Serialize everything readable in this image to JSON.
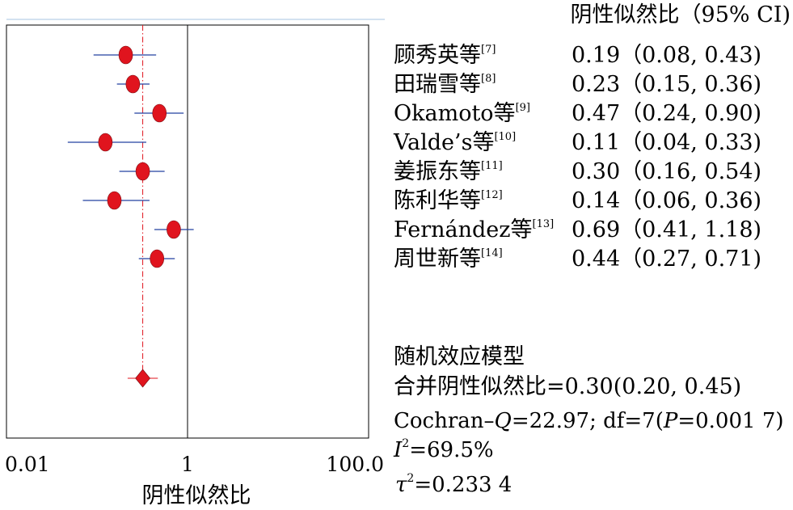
{
  "chart_data": {
    "type": "forest",
    "xlabel": "阴性似然比",
    "xscale": "log",
    "xlim": [
      0.01,
      100.0
    ],
    "xticks": [
      "0.01",
      "1",
      "100.0"
    ],
    "table_header": "阴性似然比（95% CI)",
    "studies": [
      {
        "label_main": "顾秀英等",
        "ref": "[7]",
        "value": 0.19,
        "lower": 0.08,
        "upper": 0.43,
        "ci_text": "0.19（0.08, 0.43)"
      },
      {
        "label_main": "田瑞雪等",
        "ref": "[8]",
        "value": 0.23,
        "lower": 0.15,
        "upper": 0.36,
        "ci_text": "0.23（0.15, 0.36)"
      },
      {
        "label_main": "Okamoto等",
        "ref": "[9]",
        "value": 0.47,
        "lower": 0.24,
        "upper": 0.9,
        "ci_text": "0.47（0.24, 0.90)"
      },
      {
        "label_main": "Valde’s等",
        "ref": "[10]",
        "value": 0.11,
        "lower": 0.04,
        "upper": 0.33,
        "ci_text": "0.11（0.04, 0.33)"
      },
      {
        "label_main": "姜振东等",
        "ref": "[11]",
        "value": 0.3,
        "lower": 0.16,
        "upper": 0.54,
        "ci_text": "0.30（0.16, 0.54)"
      },
      {
        "label_main": "陈利华等",
        "ref": "[12]",
        "value": 0.14,
        "lower": 0.06,
        "upper": 0.36,
        "ci_text": "0.14（0.06, 0.36)"
      },
      {
        "label_main": "Fernández等",
        "ref": "[13]",
        "value": 0.69,
        "lower": 0.41,
        "upper": 1.18,
        "ci_text": "0.69（0.41, 1.18)"
      },
      {
        "label_main": "周世新等",
        "ref": "[14]",
        "value": 0.44,
        "lower": 0.27,
        "upper": 0.71,
        "ci_text": "0.44（0.27, 0.71)"
      }
    ],
    "pooled": {
      "value": 0.3,
      "lower": 0.2,
      "upper": 0.45
    },
    "summary": {
      "model": "随机效应模型",
      "pooled_text": "合并阴性似然比=0.30(0.20, 0.45)",
      "cochran_prefix": "Cochran–",
      "cochran_q": "Q",
      "cochran_rest": "=22.97; df=7(",
      "cochran_p": "P",
      "cochran_end": "=0.001 7)",
      "i2_letter": "I",
      "i2_sup": "2",
      "i2_value": "=69.5%",
      "tau_letter": "τ",
      "tau_sup": "2",
      "tau_value": "=0.233 4"
    },
    "colors": {
      "marker": "#e0141e",
      "ci_line": "#2340a0",
      "pooled_line": "#e0141e",
      "top_rule": "#a7c4e0"
    }
  }
}
